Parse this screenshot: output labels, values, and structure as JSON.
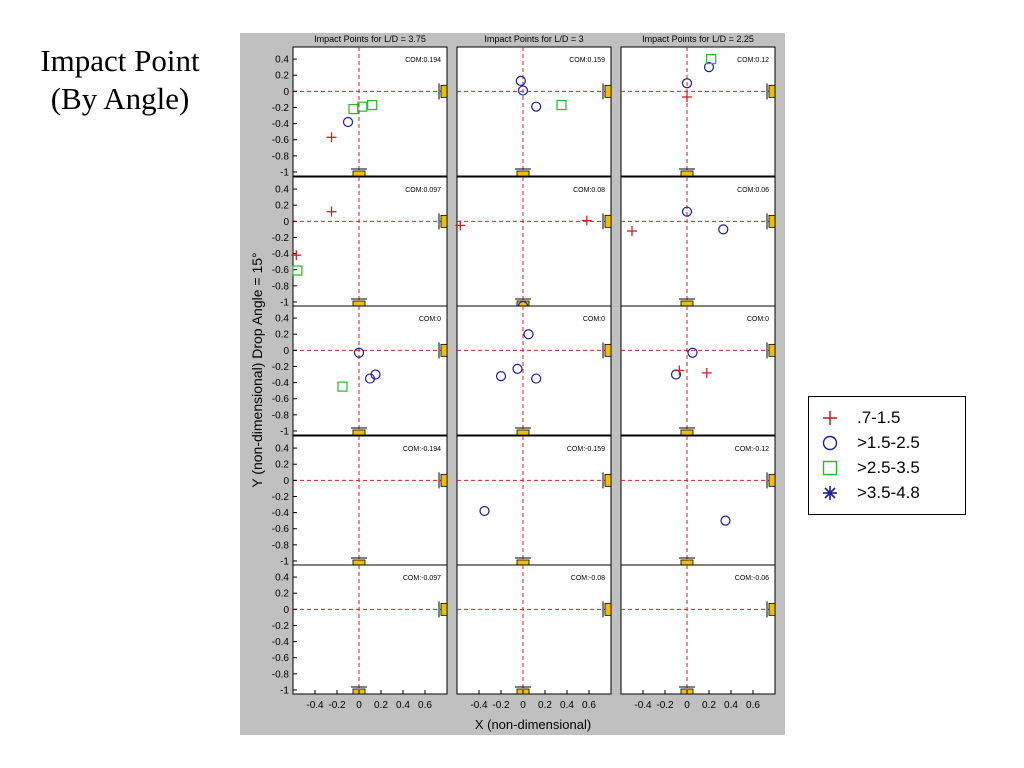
{
  "slide": {
    "title_line1": "Impact Point",
    "title_line2": "(By Angle)"
  },
  "colors": {
    "panel_bg": "#c0c0c0",
    "plot_bg": "#ffffff",
    "crosshair": "#d02020",
    "marker_yellow": "#f0c000",
    "series_1": "#cc2222",
    "series_2": "#1c1c9c",
    "series_3": "#22bb22",
    "series_4": "#1c1c9c"
  },
  "chart_data": {
    "type": "scatter",
    "ylabel": "Y (non-dimensional) Drop Angle = 15°",
    "xlabel": "X (non-dimensional)",
    "xlim": [
      -0.6,
      0.8
    ],
    "ylim": [
      -1.05,
      0.55
    ],
    "xticks": [
      -0.4,
      -0.2,
      0,
      0.2,
      0.4,
      0.6
    ],
    "xtick_labels": [
      "-0.4",
      "-0.2",
      "0",
      "0.2",
      "0.4",
      "0.6"
    ],
    "yticks": [
      0.4,
      0.2,
      0,
      -0.2,
      -0.4,
      -0.6,
      -0.8,
      -1
    ],
    "ytick_labels": [
      "0.4",
      "0.2",
      "0",
      "-0.2",
      "-0.4",
      "-0.6",
      "-0.8",
      "-1"
    ],
    "column_titles": [
      "Impact Points for L/D = 3.75",
      "Impact Points for L/D = 3",
      "Impact Points for L/D = 2.25"
    ],
    "legend": {
      "placement": "right",
      "entries": [
        {
          "label": ".7-1.5",
          "marker": "plus",
          "color": "#cc2222"
        },
        {
          "label": ">1.5-2.5",
          "marker": "circle",
          "color": "#1c1c9c"
        },
        {
          "label": ">2.5-3.5",
          "marker": "square",
          "color": "#22bb22"
        },
        {
          "label": ">3.5-4.8",
          "marker": "star",
          "color": "#1c1c9c"
        }
      ]
    },
    "panels": [
      {
        "row": 0,
        "col": 0,
        "com": "COM:0.194",
        "points": [
          {
            "x": -0.25,
            "y": -0.57,
            "series": 0
          },
          {
            "x": -0.1,
            "y": -0.38,
            "series": 1
          },
          {
            "x": -0.05,
            "y": -0.22,
            "series": 2
          },
          {
            "x": 0.03,
            "y": -0.19,
            "series": 2
          },
          {
            "x": 0.12,
            "y": -0.17,
            "series": 2
          }
        ]
      },
      {
        "row": 0,
        "col": 1,
        "com": "COM:0.159",
        "points": [
          {
            "x": -0.02,
            "y": 0.13,
            "series": 1
          },
          {
            "x": 0.0,
            "y": 0.01,
            "series": 1
          },
          {
            "x": 0.12,
            "y": -0.19,
            "series": 1
          },
          {
            "x": 0.35,
            "y": -0.17,
            "series": 2
          }
        ]
      },
      {
        "row": 0,
        "col": 2,
        "com": "COM:0.12",
        "points": [
          {
            "x": 0.0,
            "y": 0.1,
            "series": 1
          },
          {
            "x": 0.0,
            "y": -0.07,
            "series": 0
          },
          {
            "x": 0.2,
            "y": 0.3,
            "series": 1
          },
          {
            "x": 0.22,
            "y": 0.4,
            "series": 2
          }
        ]
      },
      {
        "row": 1,
        "col": 0,
        "com": "COM:0.097",
        "points": [
          {
            "x": -0.25,
            "y": 0.12,
            "series": 0
          },
          {
            "x": -0.57,
            "y": -0.42,
            "series": 0
          },
          {
            "x": -0.56,
            "y": -0.61,
            "series": 2
          }
        ]
      },
      {
        "row": 1,
        "col": 1,
        "com": "COM:0.08",
        "points": [
          {
            "x": -0.57,
            "y": -0.05,
            "series": 0
          },
          {
            "x": 0.58,
            "y": 0.01,
            "series": 0
          },
          {
            "x": 0.0,
            "y": -1.05,
            "series": 1
          }
        ]
      },
      {
        "row": 1,
        "col": 2,
        "com": "COM:0.06",
        "points": [
          {
            "x": 0.0,
            "y": 0.12,
            "series": 1
          },
          {
            "x": -0.5,
            "y": -0.12,
            "series": 0
          },
          {
            "x": 0.33,
            "y": -0.1,
            "series": 1
          }
        ]
      },
      {
        "row": 2,
        "col": 0,
        "com": "COM:0",
        "points": [
          {
            "x": 0.0,
            "y": -0.03,
            "series": 1
          },
          {
            "x": -0.15,
            "y": -0.45,
            "series": 2
          },
          {
            "x": 0.1,
            "y": -0.35,
            "series": 1
          },
          {
            "x": 0.15,
            "y": -0.3,
            "series": 1
          }
        ]
      },
      {
        "row": 2,
        "col": 1,
        "com": "COM:0",
        "points": [
          {
            "x": 0.05,
            "y": 0.2,
            "series": 1
          },
          {
            "x": -0.2,
            "y": -0.32,
            "series": 1
          },
          {
            "x": -0.05,
            "y": -0.23,
            "series": 1
          },
          {
            "x": 0.12,
            "y": -0.35,
            "series": 1
          }
        ]
      },
      {
        "row": 2,
        "col": 2,
        "com": "COM:0",
        "points": [
          {
            "x": 0.05,
            "y": -0.03,
            "series": 1
          },
          {
            "x": -0.1,
            "y": -0.3,
            "series": 1
          },
          {
            "x": -0.07,
            "y": -0.25,
            "series": 0
          },
          {
            "x": 0.18,
            "y": -0.28,
            "series": 0
          }
        ]
      },
      {
        "row": 3,
        "col": 0,
        "com": "COM:-0.194",
        "points": []
      },
      {
        "row": 3,
        "col": 1,
        "com": "COM:-0.159",
        "points": [
          {
            "x": -0.35,
            "y": -0.38,
            "series": 1
          }
        ]
      },
      {
        "row": 3,
        "col": 2,
        "com": "COM:-0.12",
        "points": [
          {
            "x": 0.35,
            "y": -0.5,
            "series": 1
          }
        ]
      },
      {
        "row": 4,
        "col": 0,
        "com": "COM:-0.097",
        "points": []
      },
      {
        "row": 4,
        "col": 1,
        "com": "COM:-0.08",
        "points": []
      },
      {
        "row": 4,
        "col": 2,
        "com": "COM:-0.06",
        "points": []
      }
    ]
  }
}
